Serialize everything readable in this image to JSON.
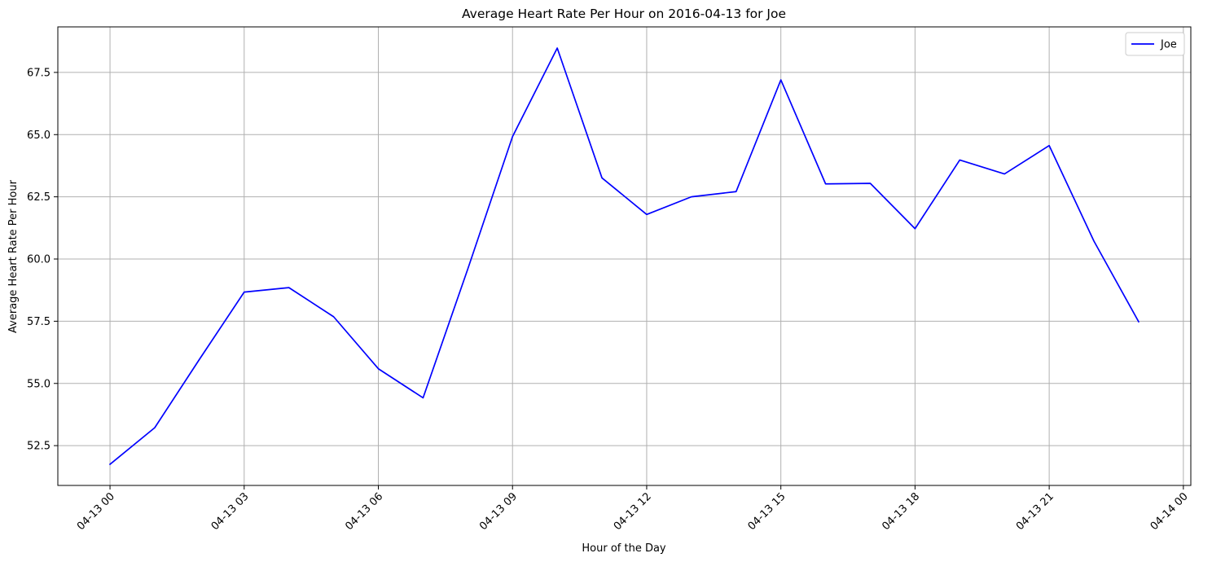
{
  "chart_data": {
    "type": "line",
    "title": "Average Heart Rate Per Hour on 2016-04-13 for Joe",
    "xlabel": "Hour of the Day",
    "ylabel": "Average Heart Rate Per Hour",
    "x": [
      "2016-04-13 00:00",
      "2016-04-13 01:00",
      "2016-04-13 02:00",
      "2016-04-13 03:00",
      "2016-04-13 04:00",
      "2016-04-13 05:00",
      "2016-04-13 06:00",
      "2016-04-13 07:00",
      "2016-04-13 08:00",
      "2016-04-13 09:00",
      "2016-04-13 10:00",
      "2016-04-13 11:00",
      "2016-04-13 12:00",
      "2016-04-13 13:00",
      "2016-04-13 14:00",
      "2016-04-13 15:00",
      "2016-04-13 16:00",
      "2016-04-13 17:00",
      "2016-04-13 18:00",
      "2016-04-13 19:00",
      "2016-04-13 20:00",
      "2016-04-13 21:00",
      "2016-04-13 22:00",
      "2016-04-13 23:00"
    ],
    "series": [
      {
        "name": "Joe",
        "color": "#0000ff",
        "values": [
          51.75,
          53.22,
          55.97,
          58.67,
          58.85,
          57.68,
          55.59,
          54.42,
          59.6,
          64.92,
          68.48,
          63.26,
          61.79,
          62.5,
          62.71,
          67.2,
          63.02,
          63.04,
          61.22,
          63.98,
          63.42,
          64.56,
          60.72,
          57.48
        ]
      }
    ],
    "xticks": [
      "04-13 00",
      "04-13 03",
      "04-13 06",
      "04-13 09",
      "04-13 12",
      "04-13 15",
      "04-13 18",
      "04-13 21",
      "04-14 00"
    ],
    "xtick_values": [
      "2016-04-13 00:00",
      "2016-04-13 03:00",
      "2016-04-13 06:00",
      "2016-04-13 09:00",
      "2016-04-13 12:00",
      "2016-04-13 15:00",
      "2016-04-13 18:00",
      "2016-04-13 21:00",
      "2016-04-14 00:00"
    ],
    "yticks": [
      "52.5",
      "55.0",
      "57.5",
      "60.0",
      "62.5",
      "65.0",
      "67.5"
    ],
    "ytick_values": [
      52.5,
      55.0,
      57.5,
      60.0,
      62.5,
      65.0,
      67.5
    ],
    "xlim": [
      "2016-04-12 22:50",
      "2016-04-14 00:10"
    ],
    "ylim": [
      50.9,
      69.33
    ],
    "grid": true,
    "legend_position": "top-right"
  }
}
